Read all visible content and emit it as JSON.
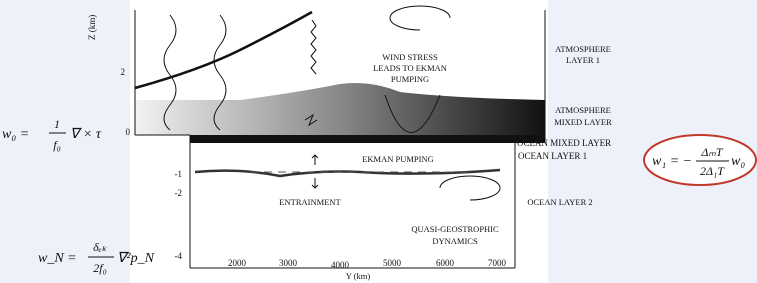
{
  "axes": {
    "z_label": "Z (km)",
    "y_label": "Y (km)",
    "z_ticks": [
      "2",
      "0",
      "-1",
      "-2",
      "-4"
    ],
    "y_ticks": [
      "2000",
      "3000",
      "4000",
      "5000",
      "6000",
      "7000"
    ]
  },
  "labels": {
    "wind_stress": [
      "WIND STRESS",
      "LEADS TO EKMAN",
      "PUMPING"
    ],
    "atmosphere_layer_1": [
      "ATMOSPHERE",
      "LAYER 1"
    ],
    "atmosphere_mixed_layer": [
      "ATMOSPHERE",
      "MIXED LAYER"
    ],
    "ocean_mixed_layer": "OCEAN MIXED LAYER",
    "ocean_layer_1": "OCEAN LAYER 1",
    "ekman_pumping": "EKMAN PUMPING",
    "entrainment": "ENTRAINMENT",
    "ocean_layer_2": "OCEAN LAYER 2",
    "quasi_geostrophic": [
      "QUASI-GEOSTROPHIC",
      "DYNAMICS"
    ]
  },
  "equations": {
    "w0": {
      "lhs": "w₀ =",
      "num": "1",
      "den": "f₀",
      "rhs": "∇ × τ"
    },
    "w1": {
      "lhs": "w₁ = −",
      "num": "ΔₘT",
      "den": "2Δ₁T",
      "rhs": "w₀"
    },
    "wN": {
      "lhs": "w_N =",
      "num": "δₑₖ",
      "den": "2f₀",
      "rhs": "∇²p_N"
    }
  }
}
